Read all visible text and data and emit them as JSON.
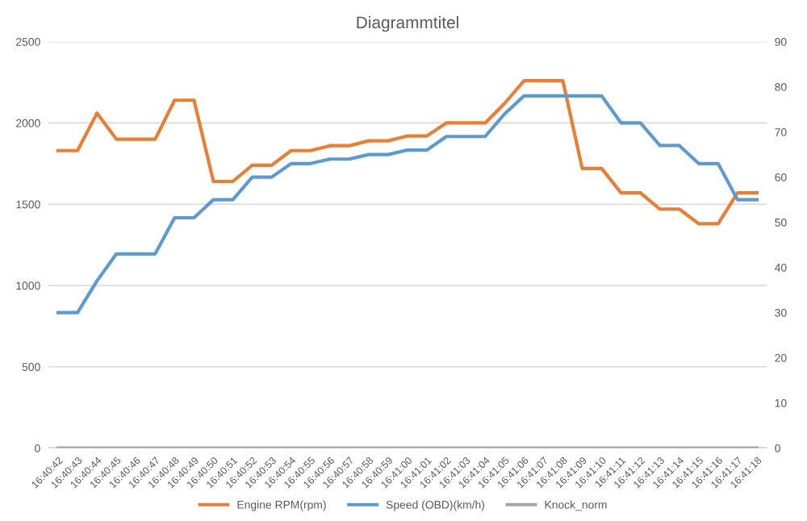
{
  "chart_data": {
    "type": "line",
    "title": "Diagrammtitel",
    "categories": [
      "16:40:42",
      "16:40:43",
      "16:40:44",
      "16:40:45",
      "16:40:46",
      "16:40:47",
      "16:40:48",
      "16:40:49",
      "16:40:50",
      "16:40:51",
      "16:40:52",
      "16:40:53",
      "16:40:54",
      "16:40:55",
      "16:40:56",
      "16:40:57",
      "16:40:58",
      "16:40:59",
      "16:41:00",
      "16:41:01",
      "16:41:02",
      "16:41:03",
      "16:41:04",
      "16:41:05",
      "16:41:06",
      "16:41:07",
      "16:41:08",
      "16:41:09",
      "16:41:10",
      "16:41:11",
      "16:41:12",
      "16:41:13",
      "16:41:14",
      "16:41:15",
      "16:41:16",
      "16:41:17",
      "16:41:18"
    ],
    "series": [
      {
        "name": "Engine RPM(rpm)",
        "color": "#ed7d31",
        "values": [
          1830,
          1830,
          2060,
          1900,
          1900,
          1900,
          2140,
          2140,
          1640,
          1640,
          1740,
          1740,
          1830,
          1830,
          1860,
          1860,
          1890,
          1890,
          1920,
          1920,
          2000,
          2000,
          2000,
          2120,
          2260,
          2260,
          2260,
          1720,
          1720,
          1570,
          1570,
          1470,
          1470,
          1380,
          1380,
          1570,
          1570
        ]
      },
      {
        "name": "Speed (OBD)(km/h)",
        "color": "#5b9bd5",
        "axis": "y2",
        "values": [
          30,
          30,
          37,
          43,
          43,
          43,
          51,
          51,
          55,
          55,
          60,
          60,
          63,
          63,
          64,
          64,
          65,
          65,
          66,
          66,
          69,
          69,
          69,
          74,
          78,
          78,
          78,
          78,
          78,
          72,
          72,
          67,
          67,
          63,
          63,
          55,
          55
        ]
      },
      {
        "name": "Knock_norm",
        "color": "#a5a5a5",
        "values": [
          0,
          0,
          0,
          0,
          0,
          0,
          0,
          0,
          0,
          0,
          0,
          0,
          0,
          0,
          0,
          0,
          0,
          0,
          0,
          0,
          0,
          0,
          0,
          0,
          0,
          0,
          0,
          0,
          0,
          0,
          0,
          0,
          0,
          0,
          0,
          0,
          0
        ]
      }
    ],
    "ylim": [
      0,
      2500
    ],
    "yticks": [
      0,
      500,
      1000,
      1500,
      2000,
      2500
    ],
    "y2lim": [
      0,
      90
    ],
    "y2ticks": [
      0,
      10,
      20,
      30,
      40,
      50,
      60,
      70,
      80,
      90
    ],
    "grid": "y",
    "legend": "bottom",
    "line_style": "solid",
    "marker": "none"
  }
}
